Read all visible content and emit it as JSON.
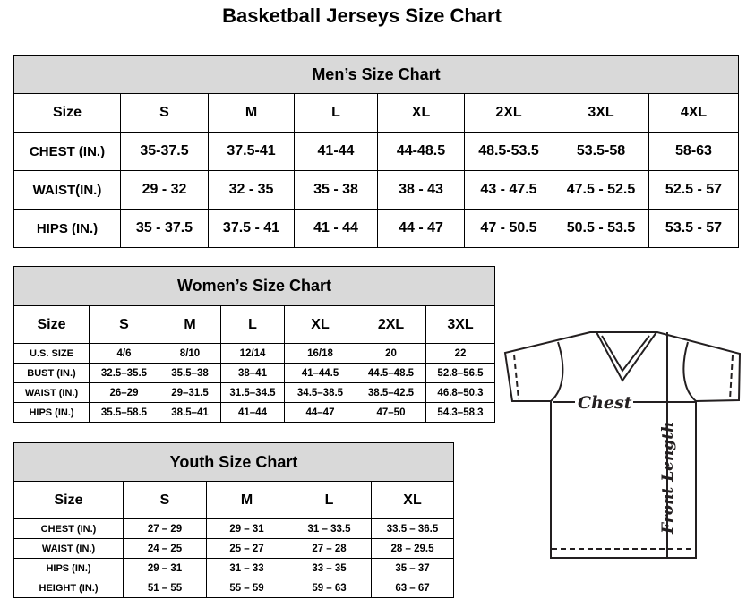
{
  "title": "Basketball Jerseys Size Chart",
  "mens": {
    "caption": "Men’s Size Chart",
    "header": [
      "Size",
      "S",
      "M",
      "L",
      "XL",
      "2XL",
      "3XL",
      "4XL"
    ],
    "rows": [
      [
        "CHEST (IN.)",
        "35-37.5",
        "37.5-41",
        "41-44",
        "44-48.5",
        "48.5-53.5",
        "53.5-58",
        "58-63"
      ],
      [
        "WAIST(IN.)",
        "29 - 32",
        "32 - 35",
        "35 - 38",
        "38 - 43",
        "43 - 47.5",
        "47.5 - 52.5",
        "52.5 - 57"
      ],
      [
        "HIPS (IN.)",
        "35 - 37.5",
        "37.5 - 41",
        "41 - 44",
        "44 - 47",
        "47 - 50.5",
        "50.5 - 53.5",
        "53.5 - 57"
      ]
    ]
  },
  "womens": {
    "caption": "Women’s Size Chart",
    "header": [
      "Size",
      "S",
      "M",
      "L",
      "XL",
      "2XL",
      "3XL"
    ],
    "rows": [
      [
        "U.S. SIZE",
        "4/6",
        "8/10",
        "12/14",
        "16/18",
        "20",
        "22"
      ],
      [
        "BUST (IN.)",
        "32.5–35.5",
        "35.5–38",
        "38–41",
        "41–44.5",
        "44.5–48.5",
        "52.8–56.5"
      ],
      [
        "WAIST (IN.)",
        "26–29",
        "29–31.5",
        "31.5–34.5",
        "34.5–38.5",
        "38.5–42.5",
        "46.8–50.3"
      ],
      [
        "HIPS (IN.)",
        "35.5–58.5",
        "38.5–41",
        "41–44",
        "44–47",
        "47–50",
        "54.3–58.3"
      ]
    ]
  },
  "youth": {
    "caption": "Youth Size Chart",
    "header": [
      "Size",
      "S",
      "M",
      "L",
      "XL"
    ],
    "rows": [
      [
        "CHEST (IN.)",
        "27 – 29",
        "29 – 31",
        "31 – 33.5",
        "33.5 – 36.5"
      ],
      [
        "WAIST (IN.)",
        "24 – 25",
        "25 – 27",
        "27 – 28",
        "28 – 29.5"
      ],
      [
        "HIPS (IN.)",
        "29 – 31",
        "31 – 33",
        "33 – 35",
        "35 – 37"
      ],
      [
        "HEIGHT (IN.)",
        "51 – 55",
        "55 – 59",
        "59 – 63",
        "63 – 67"
      ]
    ]
  },
  "diagram": {
    "chest_label": "Chest",
    "length_label": "Front Length",
    "line_color": "#231f20"
  }
}
